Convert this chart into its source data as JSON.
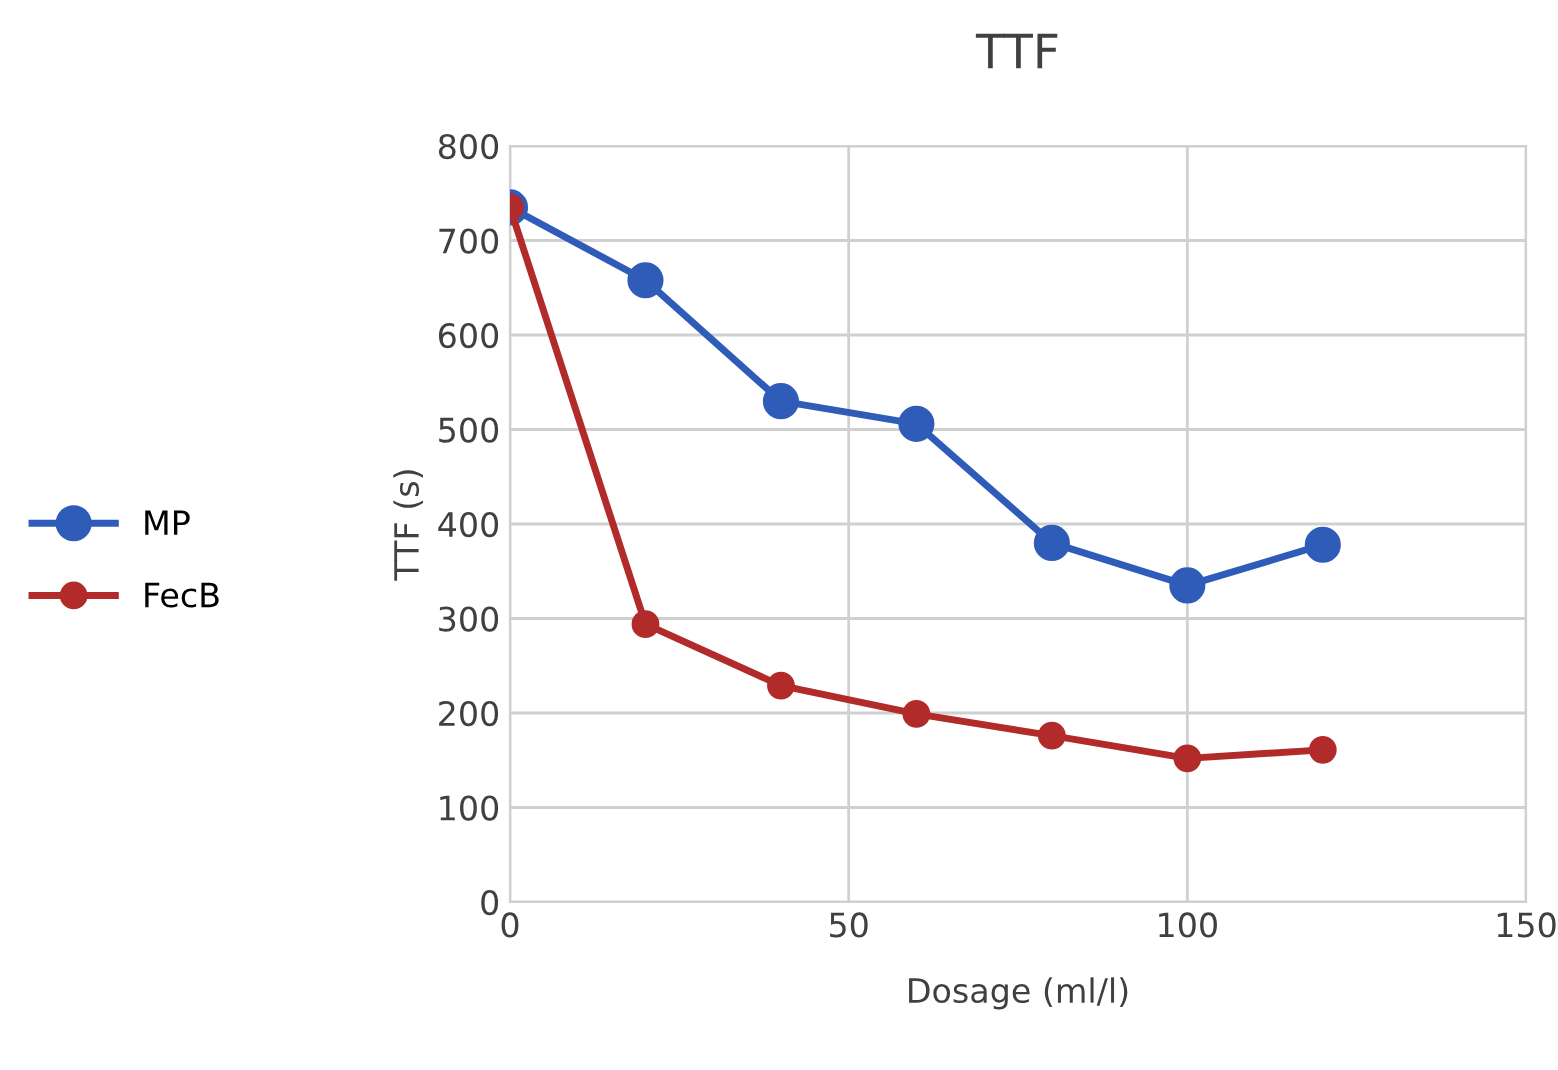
{
  "chart_data": {
    "type": "line",
    "title": "TTF",
    "xlabel": "Dosage (ml/l)",
    "ylabel": "TTF (s)",
    "x": [
      0,
      20,
      40,
      60,
      80,
      100,
      120
    ],
    "series": [
      {
        "name": "MP",
        "color": "#2e5cb8",
        "values": [
          735,
          658,
          530,
          506,
          380,
          335,
          378
        ]
      },
      {
        "name": "FecB",
        "color": "#b22b2b",
        "values": [
          735,
          294,
          229,
          199,
          176,
          152,
          161
        ]
      }
    ],
    "xlim": [
      0,
      150
    ],
    "xticks": [
      0,
      50,
      100,
      150
    ],
    "ylim": [
      0,
      800
    ],
    "yticks": [
      0,
      100,
      200,
      300,
      400,
      500,
      600,
      700,
      800
    ],
    "grid": true,
    "legend": "left",
    "marker": "circle",
    "line_style": "solid"
  }
}
